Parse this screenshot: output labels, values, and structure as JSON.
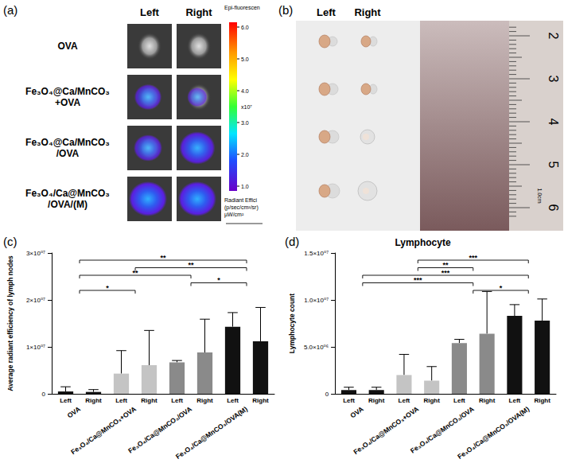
{
  "panel_a": {
    "label": "(a)",
    "columns": [
      "Left",
      "Right"
    ],
    "rows": [
      [
        "OVA"
      ],
      [
        "Fe₃O₄@Ca/MnCO₃",
        "+OVA"
      ],
      [
        "Fe₃O₄@Ca/MnCO₃",
        "/OVA"
      ],
      [
        "Fe₃O₄/Ca@MnCO₃",
        "/OVA/(M)"
      ]
    ],
    "colorbar": {
      "title": "Epi-fluorescen",
      "ticks": [
        "6.0",
        "5.0",
        "4.0",
        "3.0",
        "2.0",
        "1.0"
      ],
      "multiplier": "x10⁷",
      "unit": [
        "Radiant Effici",
        "(p/sec/cm²/sr)",
        "µW/cm²"
      ]
    }
  },
  "panel_b": {
    "label": "(b)",
    "columns": [
      "Left",
      "Right"
    ],
    "ruler": [
      "2",
      "3",
      "4",
      "5",
      "6"
    ],
    "ruler_unit": "1.0cm"
  },
  "chart_data": [
    {
      "type": "bar",
      "annotations": [
        {
          "text": "(c)"
        }
      ],
      "categories": [
        "Left",
        "Right",
        "Left",
        "Right",
        "Left",
        "Right",
        "Left",
        "Right"
      ],
      "groups": [
        "OVA",
        "Fe₃O₄/Ca@MnCO₃+OVA",
        "Fe₃O₄/Ca@MnCO₃/OVA",
        "Fe₃O₄/Ca@MnCO₃/OVA(M)"
      ],
      "values": [
        500000,
        400000,
        4300000,
        6100000,
        6700000,
        8800000,
        14300000,
        11200000
      ],
      "errors": [
        1000000,
        500000,
        4900000,
        7400000,
        400000,
        7100000,
        3000000,
        7200000
      ],
      "colors": [
        "#111111",
        "#111111",
        "#c4c4c4",
        "#c4c4c4",
        "#8a8a8a",
        "#8a8a8a",
        "#111111",
        "#111111"
      ],
      "ylabel": "Average radiant efficiency of lymph nodes",
      "ylim": [
        0,
        30000000
      ],
      "yticks": [
        0,
        {
          "value": 10000000,
          "label": "1×10⁰⁷"
        },
        {
          "value": 20000000,
          "label": "2×10⁰⁷"
        },
        {
          "value": 30000000,
          "label": "3×10⁰⁷"
        }
      ],
      "significance": [
        {
          "from": 0,
          "to": 3,
          "text": "**"
        },
        {
          "from": 1,
          "to": 3,
          "text": "**"
        },
        {
          "from": 0,
          "to": 2,
          "text": "**"
        },
        {
          "from": 2,
          "to": 3,
          "text": "*"
        },
        {
          "from": 0,
          "to": 1,
          "text": "*"
        }
      ],
      "grid": false
    },
    {
      "type": "bar",
      "title": "Lymphocyte",
      "annotations": [
        {
          "text": "(d)"
        }
      ],
      "categories": [
        "Left",
        "Right",
        "Left",
        "Right",
        "Left",
        "Right",
        "Left",
        "Right"
      ],
      "groups": [
        "OVA",
        "Fe₃O₄/Ca@MnCO₃+OVA",
        "Fe₃O₄/Ca@MnCO₃/OVA",
        "Fe₃O₄/Ca@MnCO₃/OVA(M)"
      ],
      "values": [
        400000,
        400000,
        2000000,
        1400000,
        5400000,
        6400000,
        8300000,
        7800000
      ],
      "errors": [
        300000,
        300000,
        2200000,
        1500000,
        400000,
        4500000,
        1200000,
        2300000
      ],
      "colors": [
        "#111111",
        "#111111",
        "#c4c4c4",
        "#c4c4c4",
        "#8a8a8a",
        "#8a8a8a",
        "#111111",
        "#111111"
      ],
      "ylabel": "Lymphocyte count",
      "ylim": [
        0,
        15000000
      ],
      "yticks": [
        0,
        {
          "value": 5000000,
          "label": "5.0×10⁰⁶"
        },
        {
          "value": 10000000,
          "label": "1.0×10⁰⁷"
        },
        {
          "value": 15000000,
          "label": "1.5×10⁰⁷"
        }
      ],
      "significance": [
        {
          "from": 1,
          "to": 3,
          "text": "***"
        },
        {
          "from": 1,
          "to": 2,
          "text": "**"
        },
        {
          "from": 0,
          "to": 3,
          "text": "***"
        },
        {
          "from": 0,
          "to": 2,
          "text": "***"
        },
        {
          "from": 2,
          "to": 3,
          "text": "*"
        }
      ],
      "grid": false
    }
  ]
}
